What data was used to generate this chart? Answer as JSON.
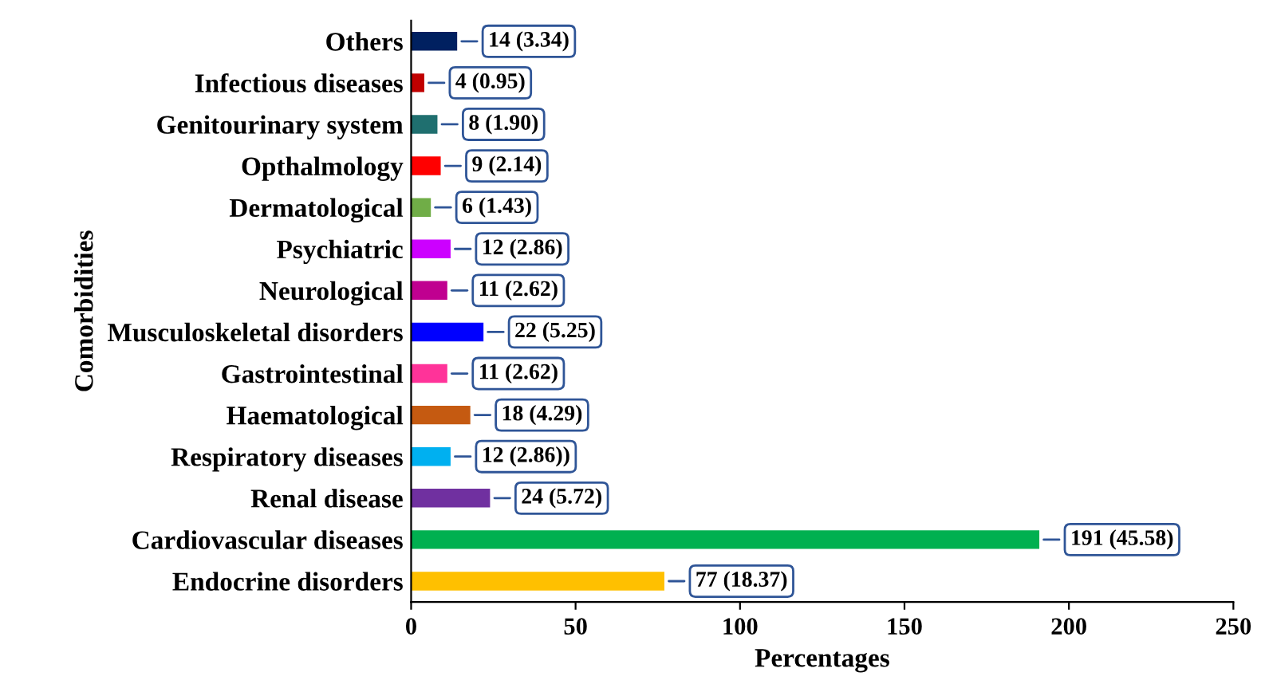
{
  "chart_data": {
    "type": "bar",
    "orientation": "horizontal",
    "xlabel": "Percentages",
    "ylabel": "Comorbidities",
    "categories": [
      "Others",
      "Infectious diseases",
      "Genitourinary system",
      "Opthalmology",
      "Dermatological",
      "Psychiatric",
      "Neurological",
      "Musculoskeletal disorders",
      "Gastrointestinal",
      "Haematological",
      "Respiratory diseases",
      "Renal disease",
      "Cardiovascular diseases",
      "Endocrine disorders"
    ],
    "values": [
      14,
      4,
      8,
      9,
      6,
      12,
      11,
      22,
      11,
      18,
      12,
      24,
      191,
      77
    ],
    "value_labels": [
      "14 (3.34)",
      "4 (0.95)",
      "8 (1.90)",
      "9 (2.14)",
      "6 (1.43)",
      "12 (2.86)",
      "11 (2.62)",
      "22 (5.25)",
      "11 (2.62)",
      "18 (4.29)",
      "12 (2.86))",
      "24 (5.72)",
      "191 (45.58)",
      "77 (18.37)"
    ],
    "colors": [
      "#002060",
      "#c00000",
      "#1f6f6f",
      "#ff0000",
      "#70ad47",
      "#cc00ff",
      "#c00090",
      "#0000ff",
      "#ff3399",
      "#c55a11",
      "#00b0f0",
      "#7030a0",
      "#00b050",
      "#ffc000"
    ],
    "xlim": [
      0,
      250
    ],
    "xticks": [
      0,
      50,
      100,
      150,
      200,
      250
    ],
    "grid": false,
    "legend": false
  }
}
